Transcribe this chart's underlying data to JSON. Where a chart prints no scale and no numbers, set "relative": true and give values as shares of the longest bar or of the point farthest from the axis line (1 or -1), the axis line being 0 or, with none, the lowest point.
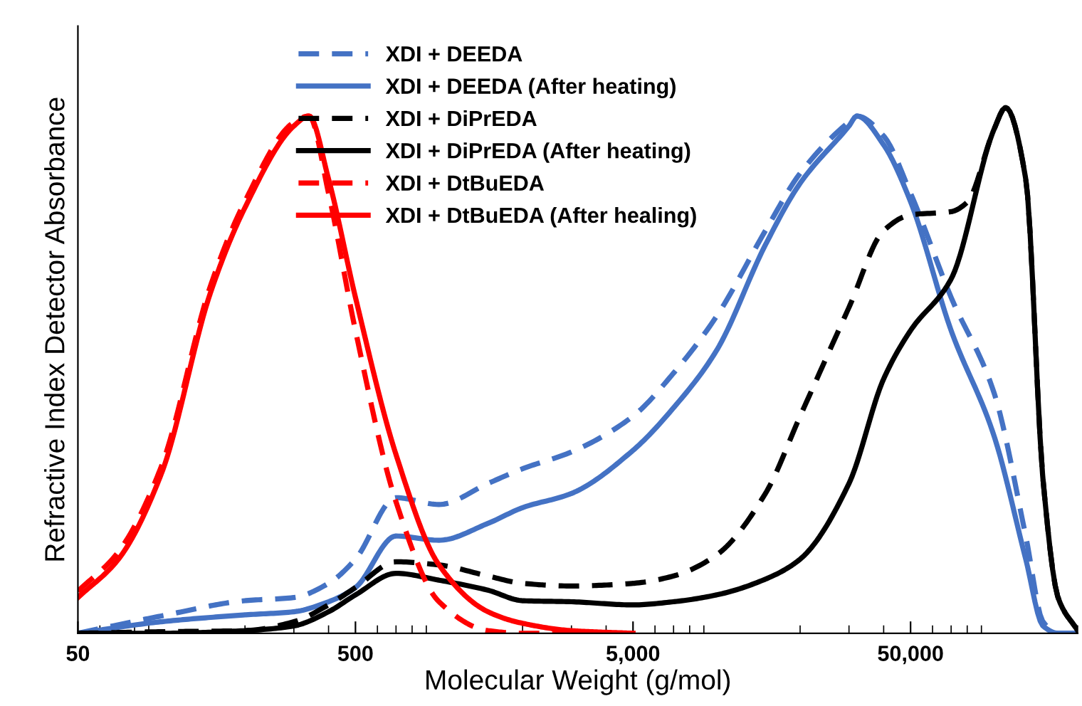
{
  "chart_data": {
    "type": "line",
    "relative": true,
    "xlabel": "Molecular Weight (g/mol)",
    "ylabel": "Refractive Index Detector Absorbance",
    "log": "x",
    "xlim": [
      50,
      200000
    ],
    "xticks": [
      {
        "value": 50,
        "label": "50"
      },
      {
        "value": 500,
        "label": "500"
      },
      {
        "value": 5000,
        "label": "5,000"
      },
      {
        "value": 50000,
        "label": "50,000"
      }
    ],
    "grid": false,
    "legend": "top",
    "marker": "none",
    "series": [
      {
        "name": "XDI + DEEDA",
        "color": "#4472c4",
        "line_style": "dashed",
        "x": [
          50,
          100,
          200,
          300,
          400,
          500,
          700,
          1000,
          1500,
          2000,
          3000,
          5000,
          7000,
          10000,
          15000,
          20000,
          30000,
          32000,
          40000,
          50000,
          70000,
          100000,
          130000,
          150000,
          170000,
          200000
        ],
        "values": [
          0,
          0.033,
          0.062,
          0.068,
          0.095,
          0.141,
          0.258,
          0.245,
          0.285,
          0.313,
          0.345,
          0.413,
          0.495,
          0.603,
          0.766,
          0.875,
          0.973,
          0.984,
          0.946,
          0.837,
          0.639,
          0.457,
          0.185,
          0.022,
          0,
          0
        ]
      },
      {
        "name": "XDI + DEEDA (After heating)",
        "color": "#4472c4",
        "line_style": "solid",
        "x": [
          50,
          100,
          200,
          300,
          400,
          500,
          700,
          1000,
          1500,
          2000,
          3000,
          5000,
          7000,
          10000,
          15000,
          20000,
          30000,
          32000,
          40000,
          50000,
          70000,
          100000,
          130000,
          150000,
          170000,
          200000
        ],
        "values": [
          0,
          0.022,
          0.035,
          0.041,
          0.06,
          0.087,
          0.185,
          0.177,
          0.209,
          0.239,
          0.266,
          0.348,
          0.429,
          0.538,
          0.739,
          0.856,
          0.965,
          0.984,
          0.929,
          0.821,
          0.576,
          0.375,
          0.141,
          0.014,
          0,
          0
        ]
      },
      {
        "name": "XDI + DiPrEDA",
        "color": "#000000",
        "line_style": "dashed",
        "x": [
          50,
          100,
          200,
          300,
          400,
          500,
          700,
          1000,
          1500,
          2000,
          3000,
          5000,
          7000,
          10000,
          15000,
          20000,
          30000,
          40000,
          50000,
          70000,
          80000,
          100000,
          110000,
          130000,
          150000,
          170000,
          200000
        ],
        "values": [
          0,
          0.003,
          0.005,
          0.022,
          0.054,
          0.087,
          0.136,
          0.13,
          0.109,
          0.095,
          0.09,
          0.095,
          0.109,
          0.149,
          0.266,
          0.413,
          0.62,
          0.766,
          0.796,
          0.802,
          0.82,
          0.959,
          1.0,
          0.864,
          0.293,
          0.068,
          0.005
        ]
      },
      {
        "name": "XDI + DiPrEDA (After heating)",
        "color": "#000000",
        "line_style": "solid",
        "x": [
          50,
          100,
          200,
          300,
          400,
          500,
          700,
          1000,
          1500,
          2000,
          3000,
          5000,
          7000,
          10000,
          15000,
          20000,
          30000,
          40000,
          50000,
          70000,
          100000,
          110000,
          130000,
          150000,
          170000,
          200000
        ],
        "values": [
          0,
          0,
          0.005,
          0.014,
          0.041,
          0.073,
          0.114,
          0.101,
          0.082,
          0.062,
          0.06,
          0.054,
          0.06,
          0.073,
          0.103,
          0.141,
          0.285,
          0.484,
          0.576,
          0.674,
          0.959,
          1.0,
          0.864,
          0.293,
          0.068,
          0.005
        ]
      },
      {
        "name": "XDI + DtBuEDA",
        "color": "#ff0000",
        "line_style": "dashed",
        "x": [
          50,
          70,
          100,
          150,
          200,
          300,
          340,
          400,
          500,
          700,
          1000,
          1500,
          2000,
          3000,
          5000
        ],
        "values": [
          0.08,
          0.155,
          0.318,
          0.66,
          0.822,
          0.972,
          0.984,
          0.837,
          0.576,
          0.25,
          0.06,
          0.005,
          0,
          0,
          0
        ]
      },
      {
        "name": "XDI + DtBuEDA (After healing)",
        "color": "#ff0000",
        "line_style": "solid",
        "x": [
          50,
          70,
          100,
          150,
          200,
          300,
          340,
          400,
          500,
          700,
          1000,
          1500,
          2000,
          3000,
          5000
        ],
        "values": [
          0.068,
          0.141,
          0.304,
          0.647,
          0.81,
          0.965,
          0.984,
          0.864,
          0.639,
          0.34,
          0.13,
          0.041,
          0.019,
          0.005,
          0
        ]
      }
    ]
  }
}
